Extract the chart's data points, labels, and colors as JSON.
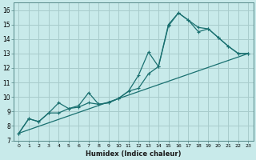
{
  "xlabel": "Humidex (Indice chaleur)",
  "ylabel": "",
  "x_ticks": [
    0,
    1,
    2,
    3,
    4,
    5,
    6,
    7,
    8,
    9,
    10,
    11,
    12,
    13,
    14,
    15,
    16,
    17,
    18,
    19,
    20,
    21,
    22,
    23
  ],
  "y_ticks": [
    7,
    8,
    9,
    10,
    11,
    12,
    13,
    14,
    15,
    16
  ],
  "xlim": [
    -0.5,
    23.5
  ],
  "ylim": [
    7,
    16.5
  ],
  "bg_color": "#c8eaea",
  "grid_color": "#a8cccc",
  "line_color": "#1a7070",
  "line1_x": [
    0,
    1,
    2,
    3,
    4,
    5,
    6,
    7,
    8,
    9,
    10,
    11,
    12,
    13,
    14,
    15,
    16,
    17,
    18,
    19,
    20,
    21,
    22,
    23
  ],
  "line1_y": [
    7.5,
    8.5,
    8.3,
    8.9,
    8.9,
    9.2,
    9.3,
    9.6,
    9.5,
    9.6,
    9.9,
    10.4,
    10.6,
    11.6,
    12.1,
    15.0,
    15.8,
    15.3,
    14.8,
    14.7,
    14.1,
    13.5,
    13.0,
    13.0
  ],
  "line2_x": [
    0,
    1,
    2,
    3,
    4,
    5,
    6,
    7,
    8,
    9,
    10,
    11,
    12,
    13,
    14,
    15,
    16,
    17,
    18,
    19,
    20,
    21,
    22,
    23
  ],
  "line2_y": [
    7.5,
    8.5,
    8.3,
    8.9,
    9.6,
    9.2,
    9.4,
    10.3,
    9.5,
    9.6,
    9.9,
    10.4,
    11.5,
    13.1,
    12.1,
    14.9,
    15.8,
    15.3,
    14.5,
    14.7,
    14.1,
    13.5,
    13.0,
    13.0
  ],
  "line3_x": [
    0,
    23
  ],
  "line3_y": [
    7.5,
    13.0
  ]
}
